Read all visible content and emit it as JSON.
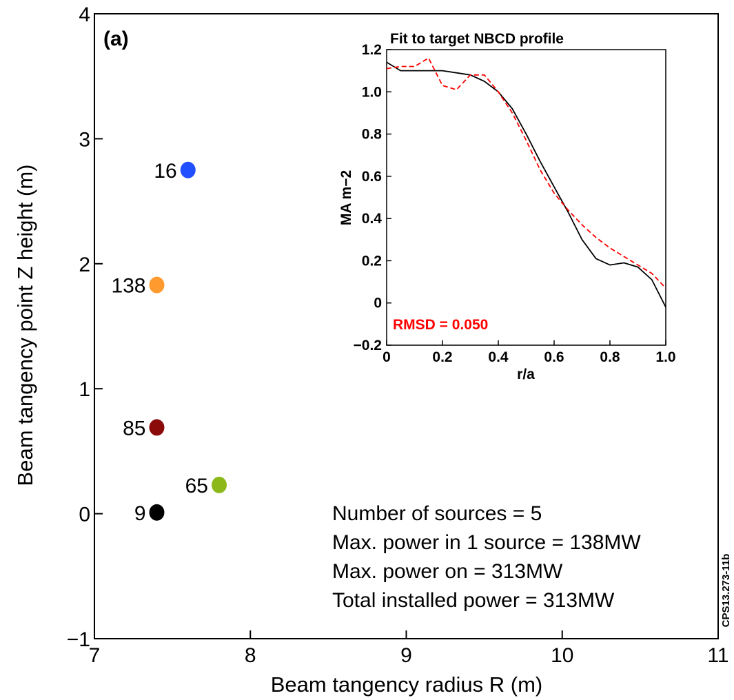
{
  "figure_id": "CPS13.273-11b",
  "chart_data": [
    {
      "type": "scatter",
      "panel_label": "(a)",
      "xlabel": "Beam tangency radius R (m)",
      "ylabel": "Beam tangency point Z height (m)",
      "xlim": [
        7,
        11
      ],
      "ylim": [
        -1,
        4
      ],
      "xticks": [
        "7",
        "8",
        "9",
        "10",
        "11"
      ],
      "yticks": [
        "−1",
        "0",
        "1",
        "2",
        "3",
        "4"
      ],
      "grid": false,
      "points": [
        {
          "label": "16",
          "x": 7.6,
          "y": 2.75,
          "color": "#1f4fff"
        },
        {
          "label": "138",
          "x": 7.4,
          "y": 1.83,
          "color": "#ff9a2e"
        },
        {
          "label": "85",
          "x": 7.4,
          "y": 0.69,
          "color": "#8b0a0a"
        },
        {
          "label": "65",
          "x": 7.8,
          "y": 0.23,
          "color": "#8cb81a"
        },
        {
          "label": "9",
          "x": 7.4,
          "y": 0.01,
          "color": "#000000"
        }
      ],
      "annotations": [
        "Number of sources = 5",
        "Max. power in 1 source = 138MW",
        "Max. power on = 313MW",
        "Total installed power = 313MW"
      ]
    },
    {
      "type": "line",
      "title": "Fit to target NBCD profile",
      "xlabel": "r/a",
      "ylabel": "MA m−2",
      "xlim": [
        0,
        1.0
      ],
      "ylim": [
        -0.2,
        1.2
      ],
      "xticks": [
        "0",
        "0.2",
        "0.4",
        "0.6",
        "0.8",
        "1.0"
      ],
      "yticks": [
        "−0.2",
        "0",
        "0.2",
        "0.4",
        "0.6",
        "0.8",
        "1.0",
        "1.2"
      ],
      "grid": false,
      "annotation": {
        "text": "RMSD = 0.050",
        "color": "#ff0000"
      },
      "series": [
        {
          "style": "solid",
          "color": "#000000",
          "x": [
            0,
            0.05,
            0.1,
            0.15,
            0.2,
            0.25,
            0.3,
            0.35,
            0.4,
            0.45,
            0.5,
            0.55,
            0.6,
            0.65,
            0.7,
            0.75,
            0.8,
            0.85,
            0.9,
            0.95,
            1.0
          ],
          "y": [
            1.14,
            1.1,
            1.1,
            1.1,
            1.1,
            1.09,
            1.08,
            1.05,
            1.0,
            0.92,
            0.8,
            0.67,
            0.55,
            0.43,
            0.3,
            0.21,
            0.18,
            0.19,
            0.17,
            0.11,
            -0.02
          ]
        },
        {
          "style": "dashed",
          "color": "#ff0000",
          "x": [
            0,
            0.05,
            0.1,
            0.15,
            0.2,
            0.25,
            0.3,
            0.35,
            0.4,
            0.45,
            0.5,
            0.55,
            0.6,
            0.65,
            0.7,
            0.75,
            0.8,
            0.85,
            0.9,
            0.95,
            1.0
          ],
          "y": [
            1.11,
            1.12,
            1.12,
            1.16,
            1.03,
            1.01,
            1.08,
            1.08,
            1.0,
            0.9,
            0.77,
            0.63,
            0.52,
            0.44,
            0.37,
            0.31,
            0.26,
            0.22,
            0.18,
            0.14,
            0.07
          ]
        }
      ]
    }
  ]
}
